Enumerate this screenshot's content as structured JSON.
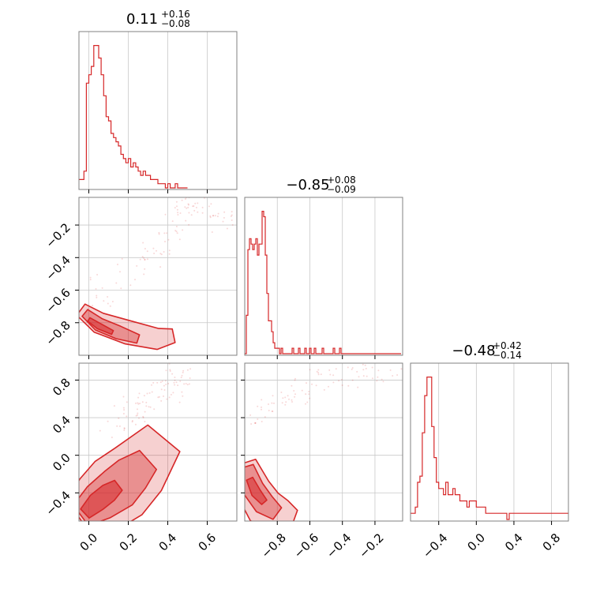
{
  "chart_data": {
    "type": "corner",
    "color": "#d62728",
    "grid": true,
    "parameters": [
      {
        "range": [
          -0.05,
          0.75
        ],
        "ticks": [
          0.0,
          0.2,
          0.4,
          0.6
        ]
      },
      {
        "range": [
          -1.0,
          -0.03
        ],
        "ticks": [
          -0.8,
          -0.6,
          -0.4,
          -0.2
        ]
      },
      {
        "range": [
          -0.7,
          0.98
        ],
        "ticks": [
          -0.4,
          0.0,
          0.4,
          0.8
        ]
      }
    ],
    "titles": [
      {
        "median": "0.11",
        "plus": "+0.16",
        "minus": "−0.08"
      },
      {
        "median": "−0.85",
        "plus": "+0.08",
        "minus": "−0.09"
      },
      {
        "median": "−0.48",
        "plus": "+0.42",
        "minus": "−0.14"
      }
    ],
    "histograms": [
      {
        "bin_start": -0.05,
        "bin_width": 0.0125,
        "counts": [
          2,
          2,
          4,
          25,
          27,
          29,
          34,
          34,
          31,
          27,
          22,
          17,
          16,
          13,
          12,
          11,
          10,
          8,
          7,
          6,
          7,
          5,
          6,
          5,
          4,
          3,
          4,
          3,
          3,
          2,
          2,
          2,
          1,
          1,
          1,
          0,
          1,
          0,
          0,
          1,
          0,
          0,
          0,
          0
        ]
      },
      {
        "bin_start": -1.0,
        "bin_width": 0.0097,
        "counts": [
          0,
          7,
          19,
          21,
          20,
          19,
          20,
          21,
          18,
          20,
          20,
          26,
          25,
          18,
          11,
          6,
          6,
          4,
          2,
          1,
          1,
          1,
          0,
          1,
          0,
          0,
          0,
          0,
          0,
          0,
          1,
          0,
          0,
          0,
          1,
          0,
          0,
          0,
          1,
          0,
          0,
          1,
          0,
          0,
          1,
          0,
          0,
          0,
          0,
          1,
          0,
          0,
          0,
          0,
          0,
          0,
          1,
          0,
          0,
          0,
          1,
          0,
          0,
          0,
          0,
          0,
          0,
          0,
          0,
          0,
          0,
          0,
          0,
          0,
          0,
          0,
          0,
          0,
          0,
          0,
          0,
          0,
          0,
          0,
          0,
          0,
          0,
          0,
          0,
          0,
          0,
          0,
          0,
          0,
          0,
          0,
          0,
          0,
          0
        ]
      },
      {
        "bin_start": -0.7,
        "bin_width": 0.025,
        "counts": [
          1,
          1,
          2,
          6,
          7,
          14,
          20,
          23,
          23,
          15,
          10,
          6,
          5,
          5,
          4,
          6,
          4,
          4,
          5,
          4,
          4,
          3,
          3,
          3,
          2,
          3,
          3,
          3,
          2,
          2,
          2,
          2,
          1,
          1,
          1,
          1,
          1,
          1,
          1,
          1,
          1,
          0,
          1,
          1,
          1,
          1,
          1,
          1,
          1,
          1,
          1,
          1,
          1,
          1,
          1,
          1,
          1,
          1,
          1,
          1,
          1,
          1,
          1,
          1,
          1,
          1,
          1,
          1
        ]
      }
    ],
    "contours": [
      {
        "pair": [
          0,
          1
        ],
        "levels": [
          {
            "shape": "banana",
            "width": 0.06,
            "center": [
              -0.04,
              -0.8
            ],
            "path": [
              [
                -0.04,
                -0.72
              ],
              [
                0.05,
                -0.8
              ],
              [
                0.2,
                -0.86
              ],
              [
                0.35,
                -0.9
              ],
              [
                0.43,
                -0.88
              ]
            ]
          },
          {
            "shape": "banana",
            "width": 0.035,
            "center": [
              -0.02,
              -0.82
            ],
            "path": [
              [
                -0.02,
                -0.74
              ],
              [
                0.05,
                -0.81
              ],
              [
                0.15,
                -0.86
              ],
              [
                0.25,
                -0.9
              ]
            ]
          },
          {
            "shape": "banana",
            "width": 0.015,
            "center": [
              0.0,
              -0.82
            ],
            "path": [
              [
                0.0,
                -0.78
              ],
              [
                0.05,
                -0.82
              ],
              [
                0.12,
                -0.86
              ]
            ]
          }
        ]
      },
      {
        "pair": [
          0,
          2
        ],
        "levels": [
          {
            "shape": "band",
            "width": 0.18,
            "path": [
              [
                -0.05,
                -0.66
              ],
              [
                0.05,
                -0.52
              ],
              [
                0.15,
                -0.35
              ],
              [
                0.25,
                -0.15
              ],
              [
                0.38,
                0.18
              ]
            ]
          },
          {
            "shape": "band",
            "width": 0.11,
            "path": [
              [
                -0.04,
                -0.64
              ],
              [
                0.05,
                -0.5
              ],
              [
                0.15,
                -0.35
              ],
              [
                0.22,
                -0.2
              ],
              [
                0.3,
                -0.05
              ]
            ]
          },
          {
            "shape": "band",
            "width": 0.05,
            "path": [
              [
                -0.02,
                -0.62
              ],
              [
                0.04,
                -0.5
              ],
              [
                0.1,
                -0.4
              ],
              [
                0.15,
                -0.32
              ]
            ]
          }
        ]
      },
      {
        "pair": [
          1,
          2
        ],
        "levels": [
          {
            "shape": "banana",
            "width": 0.12,
            "path": [
              [
                -1.0,
                -0.08
              ],
              [
                -0.95,
                -0.35
              ],
              [
                -0.88,
                -0.55
              ],
              [
                -0.78,
                -0.65
              ],
              [
                -0.7,
                -0.7
              ]
            ]
          },
          {
            "shape": "banana",
            "width": 0.07,
            "path": [
              [
                -0.99,
                -0.12
              ],
              [
                -0.95,
                -0.35
              ],
              [
                -0.88,
                -0.52
              ],
              [
                -0.8,
                -0.62
              ]
            ]
          },
          {
            "shape": "banana",
            "width": 0.03,
            "path": [
              [
                -0.97,
                -0.25
              ],
              [
                -0.93,
                -0.4
              ],
              [
                -0.88,
                -0.5
              ]
            ]
          }
        ]
      }
    ],
    "scatter_trails": [
      {
        "pair": [
          0,
          1
        ],
        "path": [
          [
            0.05,
            -0.62
          ],
          [
            0.2,
            -0.5
          ],
          [
            0.35,
            -0.35
          ],
          [
            0.45,
            -0.18
          ],
          [
            0.52,
            -0.05
          ],
          [
            0.6,
            -0.1
          ],
          [
            0.7,
            -0.2
          ]
        ]
      },
      {
        "pair": [
          0,
          2
        ],
        "path": [
          [
            0.1,
            0.3
          ],
          [
            0.2,
            0.45
          ],
          [
            0.3,
            0.55
          ],
          [
            0.4,
            0.7
          ],
          [
            0.45,
            0.85
          ],
          [
            0.5,
            0.9
          ]
        ]
      },
      {
        "pair": [
          1,
          2
        ],
        "path": [
          [
            -0.92,
            0.35
          ],
          [
            -0.8,
            0.55
          ],
          [
            -0.65,
            0.72
          ],
          [
            -0.5,
            0.8
          ],
          [
            -0.3,
            0.88
          ],
          [
            -0.1,
            0.95
          ]
        ]
      }
    ]
  }
}
